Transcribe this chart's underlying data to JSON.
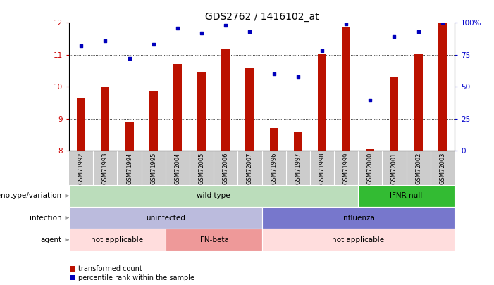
{
  "title": "GDS2762 / 1416102_at",
  "samples": [
    "GSM71992",
    "GSM71993",
    "GSM71994",
    "GSM71995",
    "GSM72004",
    "GSM72005",
    "GSM72006",
    "GSM72007",
    "GSM71996",
    "GSM71997",
    "GSM71998",
    "GSM71999",
    "GSM72000",
    "GSM72001",
    "GSM72002",
    "GSM72003"
  ],
  "transformed_count": [
    9.65,
    10.0,
    8.9,
    9.85,
    10.72,
    10.45,
    11.2,
    10.6,
    8.72,
    8.58,
    11.02,
    11.85,
    8.05,
    10.3,
    11.02,
    12.0
  ],
  "percentile_rank": [
    82,
    86,
    72,
    83,
    96,
    92,
    98,
    93,
    60,
    58,
    78,
    99,
    40,
    89,
    93,
    100
  ],
  "ylim_left": [
    8,
    12
  ],
  "ylim_right": [
    0,
    100
  ],
  "yticks_left": [
    8,
    9,
    10,
    11,
    12
  ],
  "yticks_right": [
    0,
    25,
    50,
    75,
    100
  ],
  "bar_color": "#bb1100",
  "dot_color": "#0000bb",
  "annotation_rows": [
    {
      "label": "genotype/variation",
      "segments": [
        {
          "text": "wild type",
          "start": 0,
          "end": 12,
          "color": "#bbddbb"
        },
        {
          "text": "IFNR null",
          "start": 12,
          "end": 16,
          "color": "#33bb33"
        }
      ]
    },
    {
      "label": "infection",
      "segments": [
        {
          "text": "uninfected",
          "start": 0,
          "end": 8,
          "color": "#bbbbdd"
        },
        {
          "text": "influenza",
          "start": 8,
          "end": 16,
          "color": "#7777cc"
        }
      ]
    },
    {
      "label": "agent",
      "segments": [
        {
          "text": "not applicable",
          "start": 0,
          "end": 4,
          "color": "#ffdddd"
        },
        {
          "text": "IFN-beta",
          "start": 4,
          "end": 8,
          "color": "#ee9999"
        },
        {
          "text": "not applicable",
          "start": 8,
          "end": 16,
          "color": "#ffdddd"
        }
      ]
    }
  ],
  "legend_items": [
    {
      "label": "transformed count",
      "color": "#bb1100"
    },
    {
      "label": "percentile rank within the sample",
      "color": "#0000bb"
    }
  ],
  "ylabel_left_color": "#cc0000",
  "ylabel_right_color": "#0000cc",
  "xtick_bg_color": "#cccccc",
  "bar_width": 0.35
}
